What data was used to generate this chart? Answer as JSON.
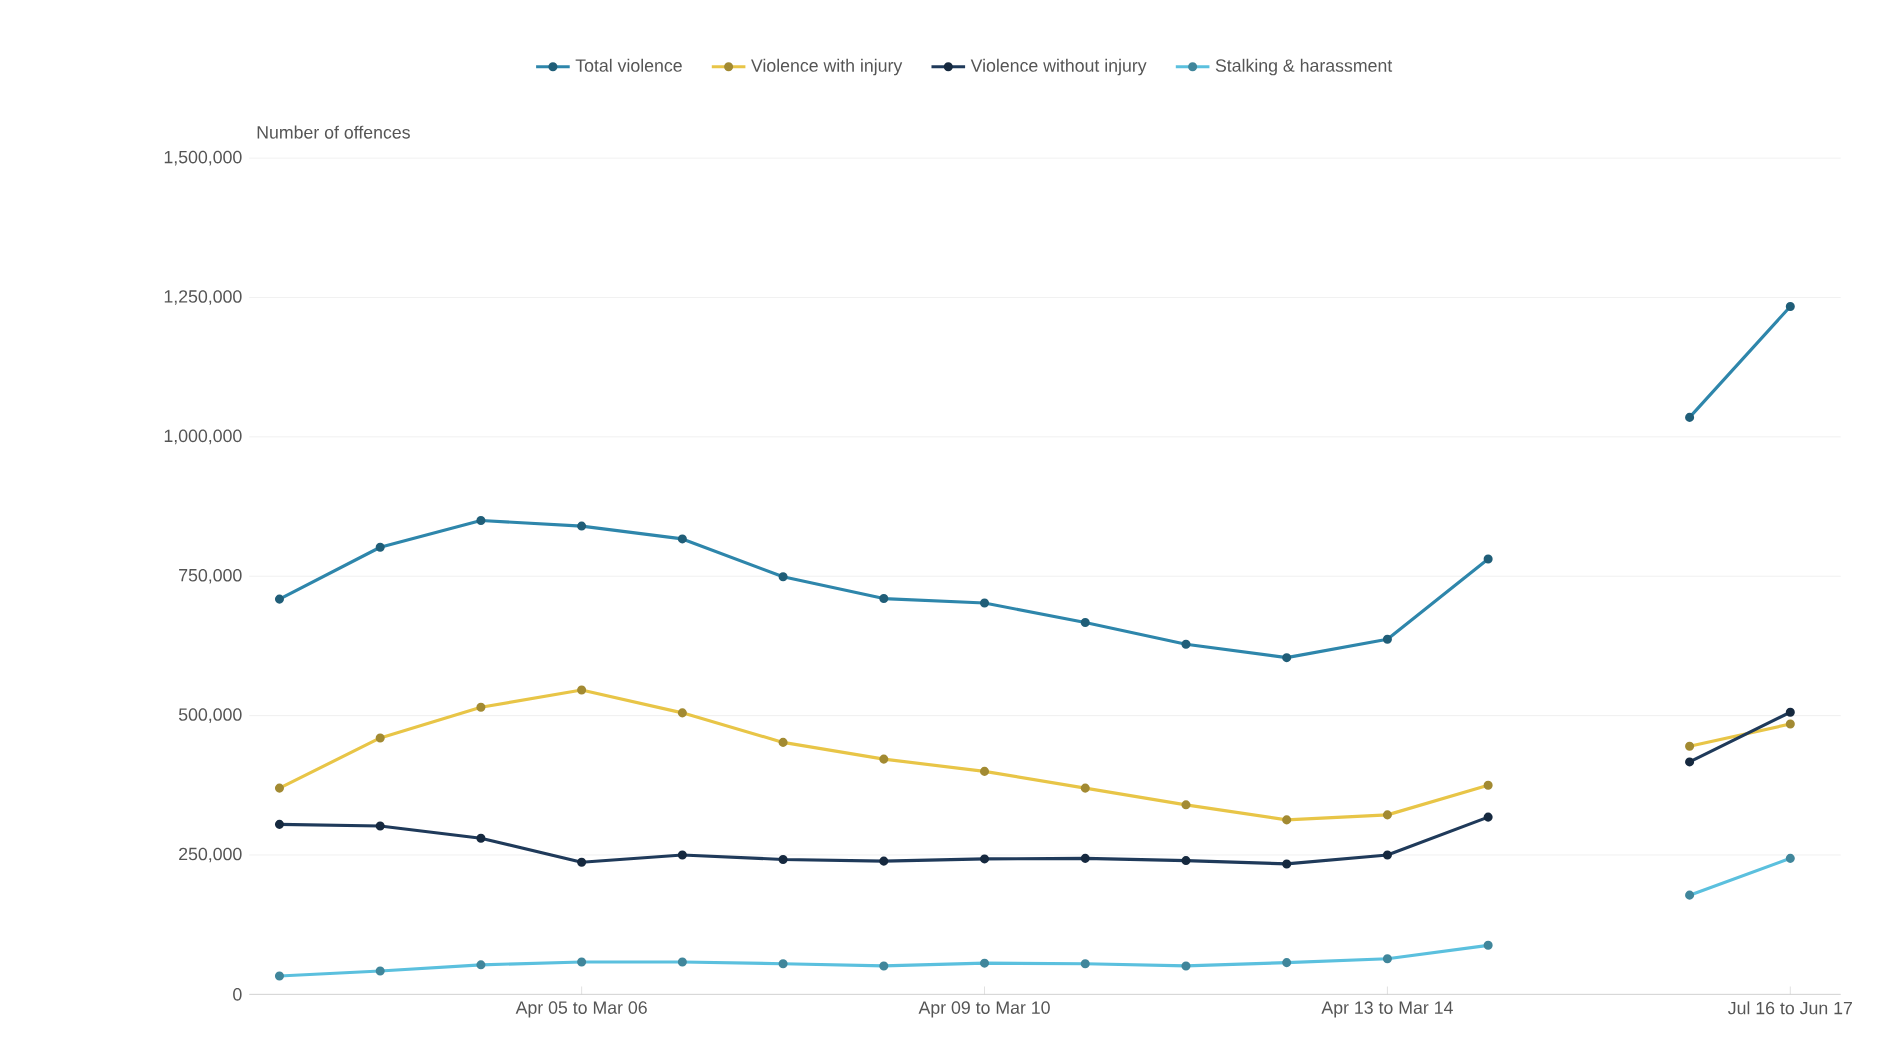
{
  "chart_data": {
    "type": "line",
    "ylabel": "Number of offences",
    "categories": [
      null,
      null,
      null,
      "Apr 05 to Mar 06",
      null,
      null,
      null,
      "Apr 09 to Mar 10",
      null,
      null,
      null,
      "Apr 13 to Mar 14",
      null,
      null,
      null,
      "Jul 16 to Jun 17"
    ],
    "series": [
      {
        "name": "Total violence",
        "color": "#2e86ab",
        "values": [
          709000,
          802000,
          850000,
          840000,
          817000,
          749000,
          710000,
          702000,
          667000,
          628000,
          604000,
          637000,
          781000,
          null,
          1035000,
          1234000
        ]
      },
      {
        "name": "Violence with injury",
        "color": "#e8c547",
        "values": [
          370000,
          460000,
          515000,
          546000,
          505000,
          452000,
          422000,
          400000,
          370000,
          340000,
          313000,
          322000,
          375000,
          null,
          445000,
          485000
        ]
      },
      {
        "name": "Violence without injury",
        "color": "#1f3a5a",
        "values": [
          305000,
          302000,
          280000,
          237000,
          250000,
          242000,
          239000,
          243000,
          244000,
          240000,
          234000,
          250000,
          318000,
          null,
          417000,
          506000
        ]
      },
      {
        "name": "Stalking & harassment",
        "color": "#5bc0de",
        "values": [
          33000,
          42000,
          53000,
          58000,
          58000,
          55000,
          51000,
          56000,
          55000,
          51000,
          57000,
          64000,
          88000,
          null,
          178000,
          244000
        ]
      }
    ],
    "ylim": [
      0,
      1500000
    ],
    "yticks": [
      {
        "value": 0,
        "label": "0"
      },
      {
        "value": 250000,
        "label": "250,000"
      },
      {
        "value": 500000,
        "label": "500,000"
      },
      {
        "value": 750000,
        "label": "750,000"
      },
      {
        "value": 1000000,
        "label": "1,000,000"
      },
      {
        "value": 1250000,
        "label": "1,250,000"
      },
      {
        "value": 1500000,
        "label": "1,500,000"
      }
    ],
    "grid": "y",
    "legend": "top",
    "marker": "circle",
    "line_style": "solid"
  }
}
